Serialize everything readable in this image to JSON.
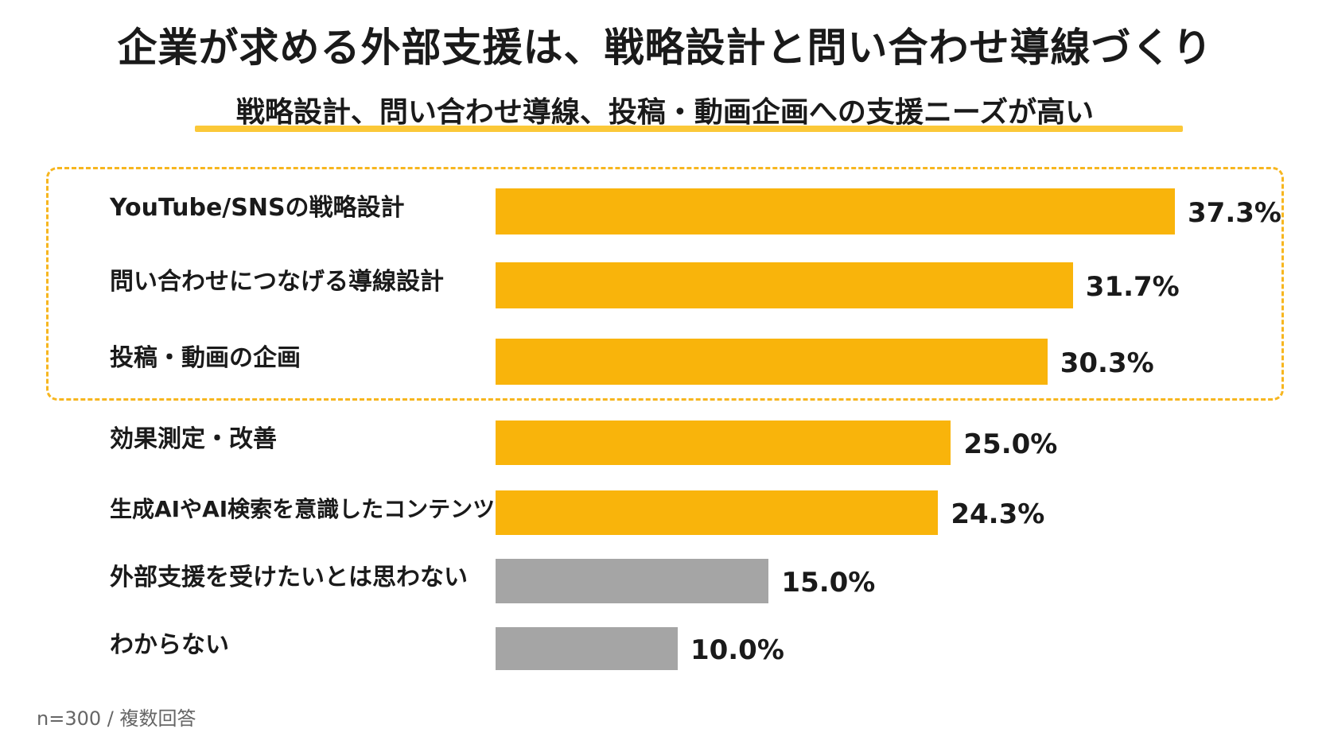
{
  "title": "企業が求める外部支援は、戦略設計と問い合わせ導線づくり",
  "subtitle": "戦略設計、問い合わせ導線、投稿・動画企画への支援ニーズが高い",
  "footnote": "n=300 / 複数回答",
  "colors": {
    "accent": "#f9b40b",
    "neutral": "#a5a5a5",
    "highlight_border": "#f7b61f",
    "underline": "#fbc838"
  },
  "chart_data": {
    "type": "bar",
    "orientation": "horizontal",
    "unit": "%",
    "categories": [
      "YouTube/SNSの戦略設計",
      "問い合わせにつなげる導線設計",
      "投稿・動画の企画",
      "効果測定・改善",
      "生成AIやAI検索を意識したコンテンツ設計",
      "外部支援を受けたいとは思わない",
      "わからない"
    ],
    "values": [
      37.3,
      31.7,
      30.3,
      25.0,
      24.3,
      15.0,
      10.0
    ],
    "value_labels": [
      "37.3%",
      "31.7%",
      "30.3%",
      "25.0%",
      "24.3%",
      "15.0%",
      "10.0%"
    ],
    "bar_colors": [
      "accent",
      "accent",
      "accent",
      "accent",
      "accent",
      "neutral",
      "neutral"
    ],
    "highlighted_categories": [
      0,
      1,
      2
    ],
    "grid": false,
    "legend": "none"
  }
}
